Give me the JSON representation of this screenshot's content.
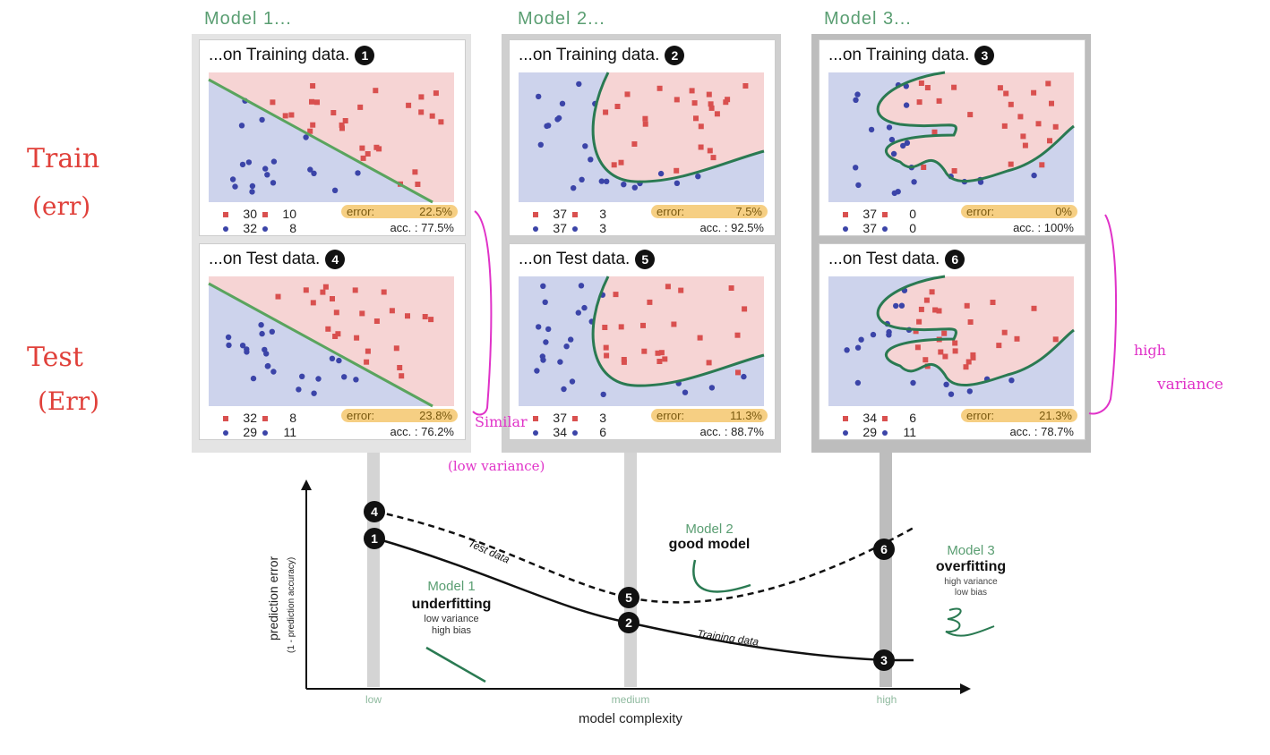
{
  "columns": [
    {
      "title": "Model 1...",
      "train": {
        "title": "...on Training data.",
        "badge": "1",
        "n_red_a": "30",
        "n_red_b": "10",
        "n_blue_a": "32",
        "n_blue_b": "8",
        "error_label": "error:",
        "error_value": "22.5%",
        "acc": "acc. : 77.5%"
      },
      "test": {
        "title": "...on Test data.",
        "badge": "4",
        "n_red_a": "32",
        "n_red_b": "8",
        "n_blue_a": "29",
        "n_blue_b": "11",
        "error_label": "error:",
        "error_value": "23.8%",
        "acc": "acc. : 76.2%"
      }
    },
    {
      "title": "Model 2...",
      "train": {
        "title": "...on Training data.",
        "badge": "2",
        "n_red_a": "37",
        "n_red_b": "3",
        "n_blue_a": "37",
        "n_blue_b": "3",
        "error_label": "error:",
        "error_value": "7.5%",
        "acc": "acc. : 92.5%"
      },
      "test": {
        "title": "...on Test data.",
        "badge": "5",
        "n_red_a": "37",
        "n_red_b": "3",
        "n_blue_a": "34",
        "n_blue_b": "6",
        "error_label": "error:",
        "error_value": "11.3%",
        "acc": "acc. : 88.7%"
      }
    },
    {
      "title": "Model 3...",
      "train": {
        "title": "...on Training data.",
        "badge": "3",
        "n_red_a": "37",
        "n_red_b": "0",
        "n_blue_a": "37",
        "n_blue_b": "0",
        "error_label": "error:",
        "error_value": "0%",
        "acc": "acc. : 100%"
      },
      "test": {
        "title": "...on Test data.",
        "badge": "6",
        "n_red_a": "34",
        "n_red_b": "6",
        "n_blue_a": "29",
        "n_blue_b": "11",
        "error_label": "error:",
        "error_value": "21.3%",
        "acc": "acc. : 78.7%"
      }
    }
  ],
  "graph": {
    "ylabel": "prediction error",
    "ylabel_sub": "(1 - prediction accuracy)",
    "xlabel": "model complexity",
    "x_low": "low",
    "x_medium": "medium",
    "x_high": "high",
    "test_curve_label": "Test data",
    "train_curve_label": "Training data",
    "m1_name": "Model 1",
    "m1_kind": "underfitting",
    "m1_note1": "low variance",
    "m1_note2": "high bias",
    "m2_name": "Model 2",
    "m2_kind": "good model",
    "m3_name": "Model 3",
    "m3_kind": "overfitting",
    "m3_note1": "high variance",
    "m3_note2": "low bias",
    "points": [
      "4",
      "1",
      "5",
      "2",
      "6",
      "3"
    ]
  },
  "annotations": {
    "train_label": "Train",
    "train_sub": "(err)",
    "test_label": "Test",
    "test_sub": "(Err)",
    "similar": "Similar",
    "low_variance": "(low variance)",
    "high_variance_1": "high",
    "high_variance_2": "variance"
  },
  "colors": {
    "red_class": "#d9504f",
    "blue_class": "#3b44a8",
    "boundary": "#2a7a52",
    "annotation_red": "#e0403a",
    "annotation_magenta": "#e032c8"
  }
}
